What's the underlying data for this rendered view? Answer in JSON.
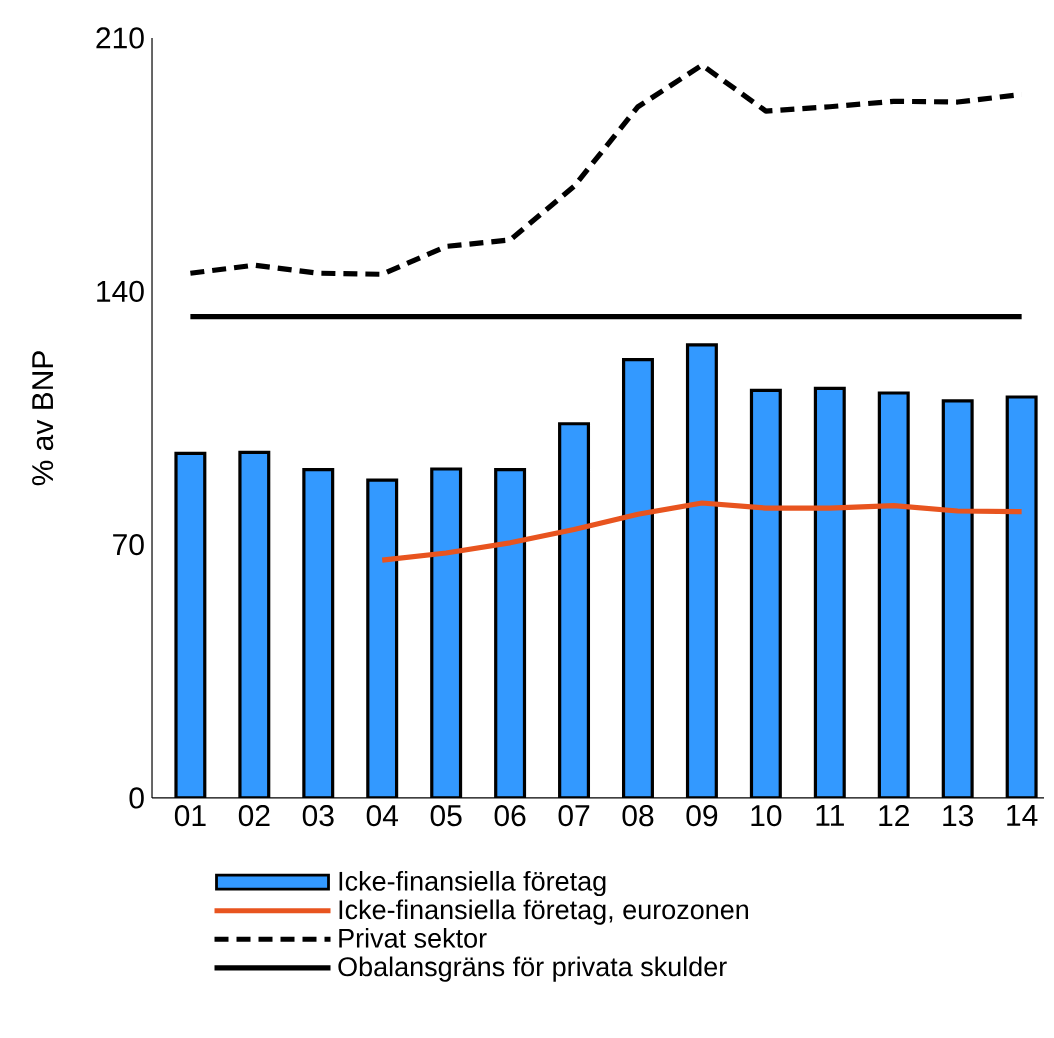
{
  "chart_data": {
    "type": "bar",
    "ylabel": "% av BNP",
    "categories": [
      "01",
      "02",
      "03",
      "04",
      "05",
      "06",
      "07",
      "08",
      "09",
      "10",
      "11",
      "12",
      "13",
      "14"
    ],
    "series": [
      {
        "name": "Icke-finansiella företag",
        "color": "#3399ff",
        "values": [
          95.2,
          95.5,
          90.7,
          87.8,
          90.9,
          90.7,
          103.4,
          121.1,
          125.2,
          112.6,
          113.2,
          111.9,
          109.7,
          110.8
        ]
      },
      {
        "name": "Icke-finansiella företag, eurozonen",
        "type": "line",
        "line_style": "solid",
        "color": "#e8541f",
        "values": [
          null,
          null,
          null,
          65.7,
          67.7,
          70.5,
          74.2,
          78.4,
          81.5,
          80.1,
          80.1,
          80.8,
          79.3,
          79.1
        ]
      },
      {
        "name": "Privat sektor",
        "type": "line",
        "line_style": "dashed",
        "color": "#000000",
        "values": [
          145,
          147.2,
          145,
          144.7,
          152.4,
          154.2,
          169,
          191,
          202.5,
          189.8,
          191,
          192.5,
          192.3,
          194.4
        ]
      },
      {
        "name": "Obalansgräns för privata skulder",
        "type": "line",
        "line_style": "solid",
        "color": "#000000",
        "values": [
          133,
          133,
          133,
          133,
          133,
          133,
          133,
          133,
          133,
          133,
          133,
          133,
          133,
          133
        ]
      }
    ],
    "ylim": [
      0,
      210
    ],
    "yticks": [
      0,
      70,
      140,
      210
    ],
    "legend": "bottom"
  }
}
